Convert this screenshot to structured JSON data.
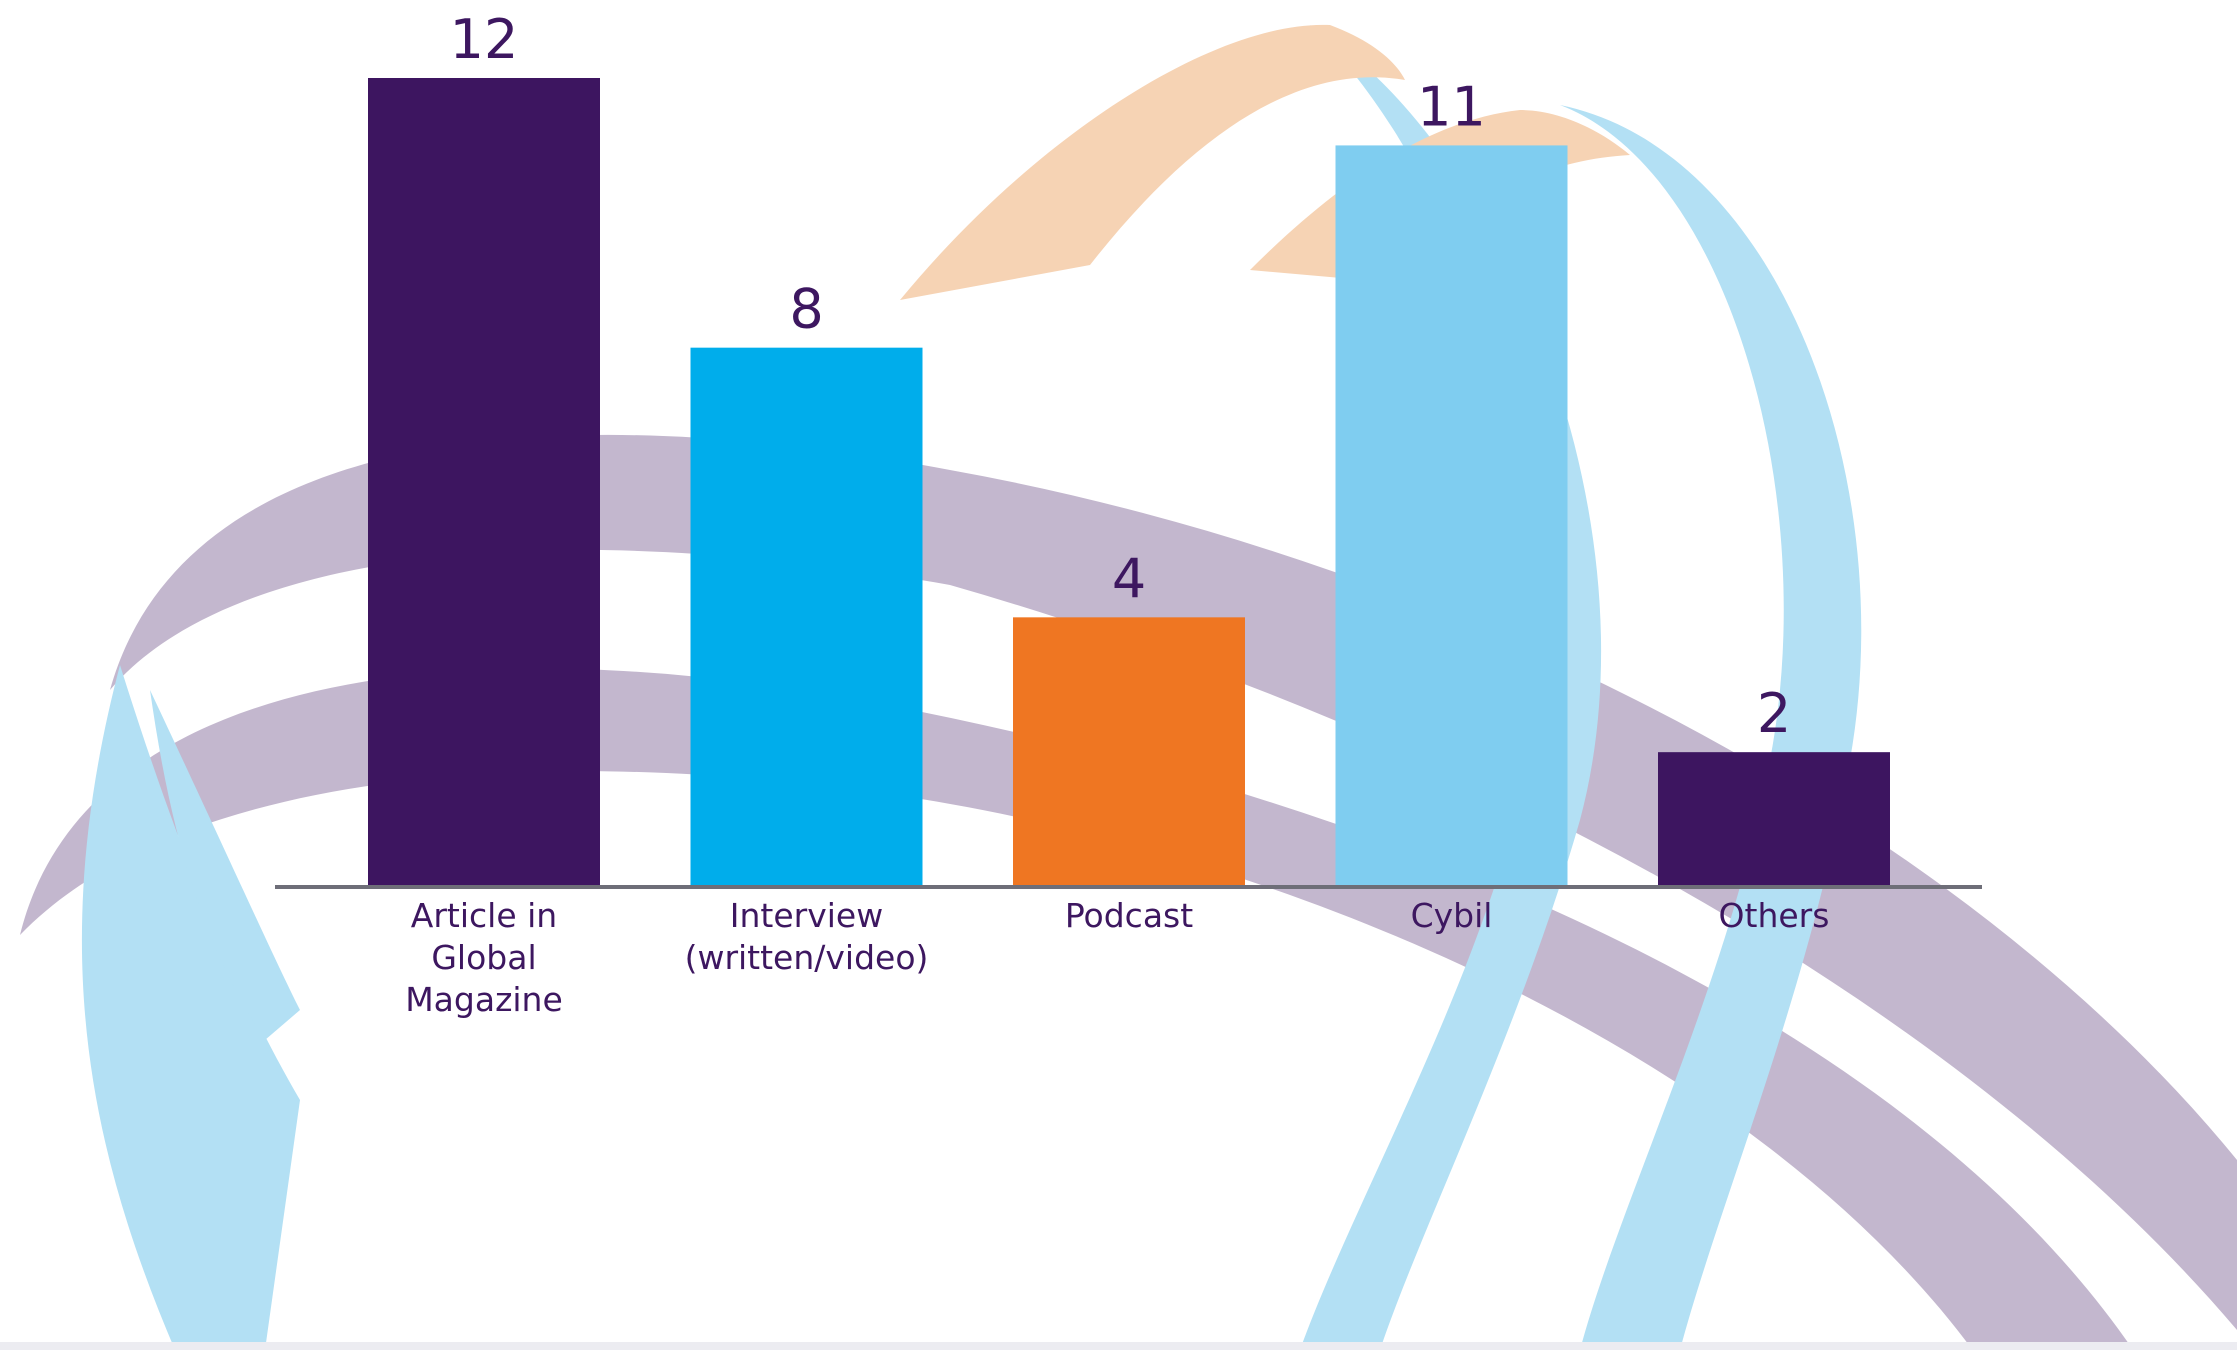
{
  "chart_data": {
    "type": "bar",
    "title": "",
    "xlabel": "",
    "ylabel": "",
    "ylim": [
      0,
      12
    ],
    "grid": false,
    "categories": [
      [
        "Article in",
        "Global",
        "Magazine"
      ],
      [
        "Interview",
        "(written/video)"
      ],
      [
        "Podcast"
      ],
      [
        "Cybil"
      ],
      [
        "Others"
      ]
    ],
    "values": [
      12,
      8,
      4,
      11,
      2
    ],
    "colors": [
      "#3d1560",
      "#00adeb",
      "#ef7622",
      "#7fcdf0",
      "#3d1560"
    ],
    "value_labels": true
  },
  "background": {
    "ribbon_colors": [
      "#c3b7ce",
      "#b3e0f4",
      "#f6d3b4"
    ]
  }
}
